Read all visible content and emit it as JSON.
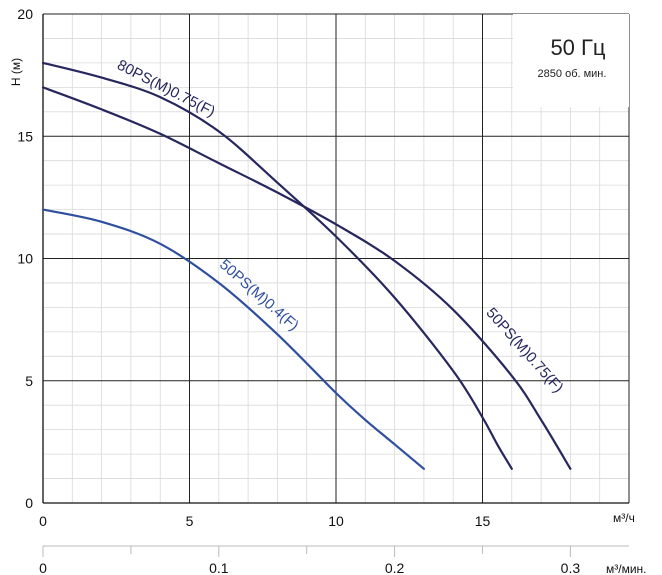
{
  "chart_data": {
    "type": "line",
    "annotation": {
      "frequency": "50 Гц",
      "speed": "2850 об. мин."
    },
    "ylabel": "H (м)",
    "xlabel": "м³/ч",
    "x2label": "м³/мин.",
    "xlim": [
      0,
      20
    ],
    "ylim": [
      0,
      20
    ],
    "x_ticks": [
      "0",
      "5",
      "10",
      "15"
    ],
    "y_ticks": [
      "0",
      "5",
      "10",
      "15",
      "20"
    ],
    "x2_ticks": [
      "0",
      "0.1",
      "0.2",
      "0.3"
    ],
    "grid": true,
    "series": [
      {
        "name": "80PS(M)0.75(F)",
        "color": "#27275e",
        "x": [
          0,
          2,
          4,
          6,
          8,
          10,
          12,
          14,
          15,
          15.5,
          16
        ],
        "y": [
          18.0,
          17.4,
          16.6,
          15.2,
          13.1,
          10.9,
          8.4,
          5.4,
          3.5,
          2.4,
          1.4
        ]
      },
      {
        "name": "50PS(M)0.75(F)",
        "color": "#27275e",
        "x": [
          0,
          2,
          4,
          6,
          8,
          10,
          12,
          14,
          16,
          17,
          18
        ],
        "y": [
          17.0,
          16.1,
          15.1,
          13.9,
          12.7,
          11.4,
          9.9,
          7.9,
          5.2,
          3.4,
          1.4
        ]
      },
      {
        "name": "50PS(M)0.4(F)",
        "color": "#2f4f9e",
        "x": [
          0,
          2,
          4,
          6,
          8,
          10,
          11,
          12,
          13
        ],
        "y": [
          12.0,
          11.5,
          10.6,
          9.0,
          6.9,
          4.5,
          3.4,
          2.4,
          1.4
        ]
      }
    ]
  }
}
